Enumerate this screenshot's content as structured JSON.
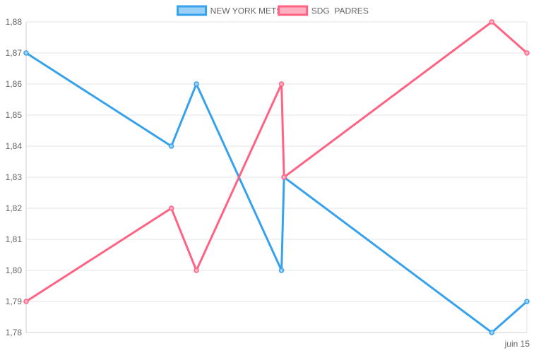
{
  "chart_data": {
    "type": "line",
    "title": "",
    "xlabel": "",
    "ylabel": "",
    "x": [
      0,
      0.29,
      0.34,
      0.51,
      0.515,
      0.93,
      1.0
    ],
    "x_tick_labels": [
      {
        "pos": 1.0,
        "label": "juin 15"
      }
    ],
    "y_ticks": [
      "1,88",
      "1,87",
      "1,86",
      "1,85",
      "1,84",
      "1,83",
      "1,82",
      "1,81",
      "1,80",
      "1,79",
      "1,78"
    ],
    "ylim": [
      1.78,
      1.88
    ],
    "grid": true,
    "legend_position": "top-center",
    "series": [
      {
        "name": "NEW YORK METS",
        "color": "#36a2eb",
        "fill": "#9ad0f5",
        "points": [
          [
            0,
            1.87
          ],
          [
            0.29,
            1.84
          ],
          [
            0.34,
            1.86
          ],
          [
            0.51,
            1.8
          ],
          [
            0.515,
            1.83
          ],
          [
            0.93,
            1.78
          ],
          [
            1.0,
            1.79
          ]
        ]
      },
      {
        "name": "SDG  PADRES",
        "color": "#ff6384",
        "fill": "#ffb1c1",
        "points": [
          [
            0,
            1.79
          ],
          [
            0.29,
            1.82
          ],
          [
            0.34,
            1.8
          ],
          [
            0.51,
            1.86
          ],
          [
            0.515,
            1.83
          ],
          [
            0.93,
            1.88
          ],
          [
            1.0,
            1.87
          ]
        ]
      }
    ]
  }
}
